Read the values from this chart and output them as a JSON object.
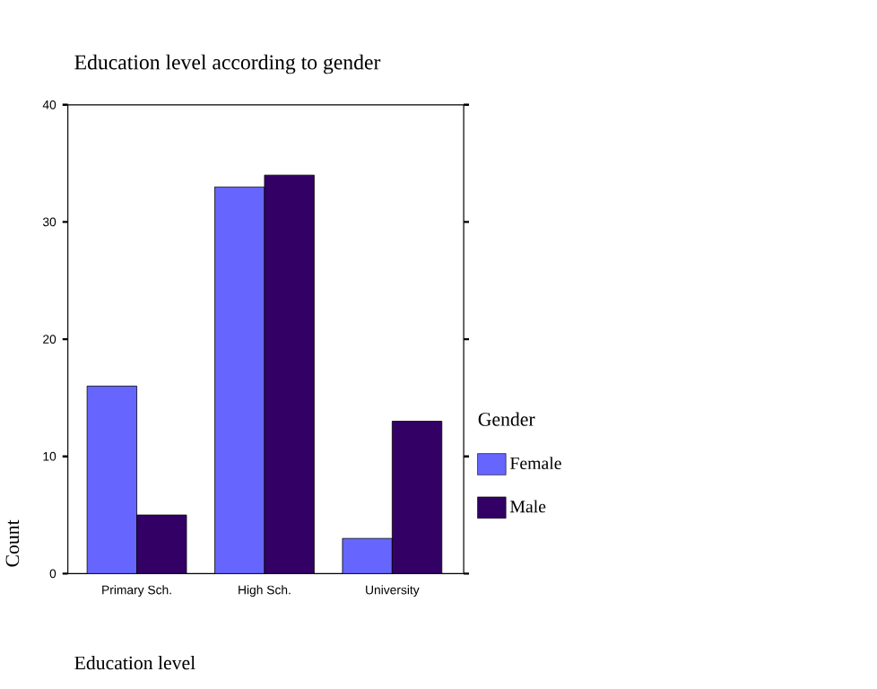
{
  "chart_data": {
    "type": "bar",
    "title": "Education level according to gender",
    "xlabel": "Education level",
    "ylabel": "Count",
    "legend_title": "Gender",
    "categories": [
      "Primary Sch.",
      "High Sch.",
      "University"
    ],
    "series": [
      {
        "name": "Female",
        "color": "#6666ff",
        "values": [
          16,
          33,
          3
        ]
      },
      {
        "name": "Male",
        "color": "#330066",
        "values": [
          5,
          34,
          13
        ]
      }
    ],
    "ylim": [
      0,
      40
    ],
    "yticks": [
      0,
      10,
      20,
      30,
      40
    ],
    "grid": false,
    "legend": "right"
  }
}
